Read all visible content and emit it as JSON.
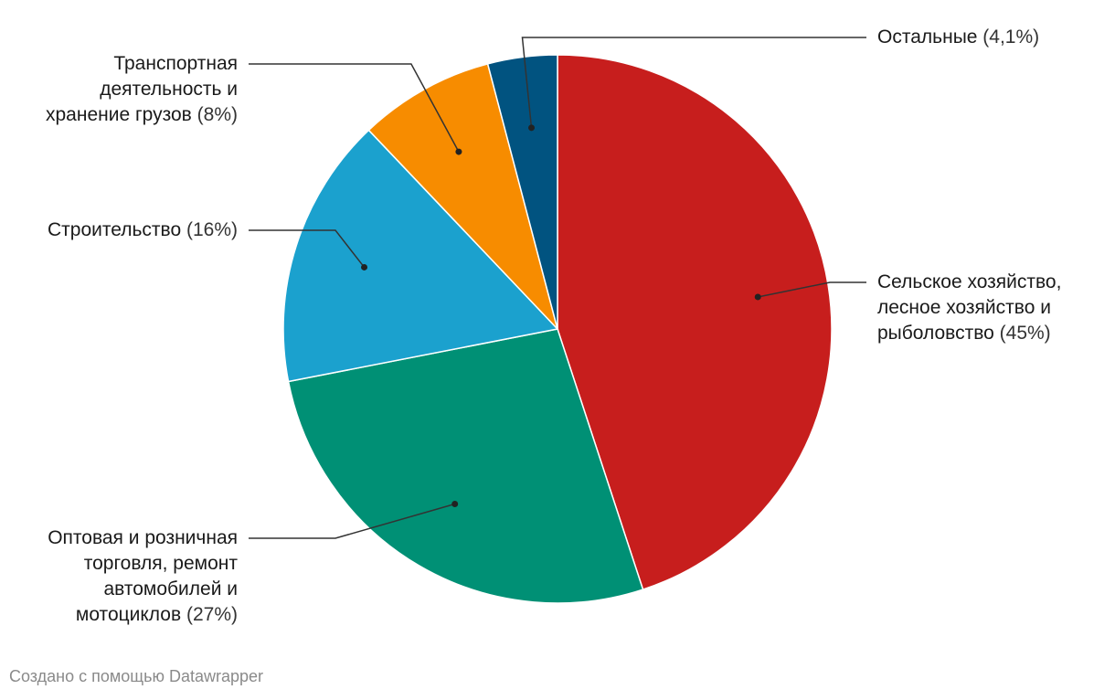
{
  "chart_data": {
    "type": "pie",
    "start_angle_deg": 0,
    "direction": "clockwise",
    "slices": [
      {
        "name": "Сельское хозяйство, лесное хозяйство и рыболовство",
        "lines": [
          "Сельское хозяйство,",
          "лесное хозяйство и",
          "рыболовство"
        ],
        "pct_text": "(45%)",
        "value": 45,
        "color": "#c71e1d"
      },
      {
        "name": "Оптовая и розничная торговля, ремонт автомобилей и мотоциклов",
        "lines": [
          "Оптовая и розничная",
          "торговля, ремонт",
          "автомобилей и",
          "мотоциклов"
        ],
        "pct_text": "(27%)",
        "value": 27,
        "color": "#009075"
      },
      {
        "name": "Строительство",
        "lines": [
          "Строительство"
        ],
        "pct_text": "(16%)",
        "value": 16,
        "color": "#1ba1ce"
      },
      {
        "name": "Транспортная деятельность и хранение грузов",
        "lines": [
          "Транспортная",
          "деятельность и",
          "хранение грузов"
        ],
        "pct_text": "(8%)",
        "value": 8,
        "color": "#f78c00"
      },
      {
        "name": "Остальные",
        "lines": [
          "Остальные"
        ],
        "pct_text": "(4,1%)",
        "value": 4.1,
        "color": "#015380"
      }
    ]
  },
  "footer": {
    "text": "Создано с помощью Datawrapper"
  }
}
